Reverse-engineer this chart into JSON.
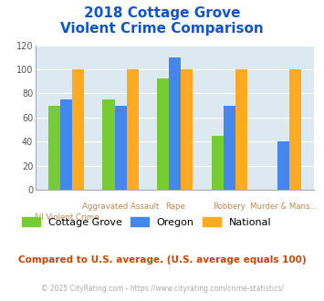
{
  "title_line1": "2018 Cottage Grove",
  "title_line2": "Violent Crime Comparison",
  "categories": [
    "All Violent Crime",
    "Aggravated Assault",
    "Rape",
    "Robbery",
    "Murder & Mans..."
  ],
  "series": {
    "Cottage Grove": [
      70,
      75,
      92,
      45,
      0
    ],
    "Oregon": [
      75,
      70,
      110,
      70,
      40
    ],
    "National": [
      100,
      100,
      100,
      100,
      100
    ]
  },
  "colors": {
    "Cottage Grove": "#77cc33",
    "Oregon": "#4488ee",
    "National": "#ffaa22"
  },
  "ylim": [
    0,
    120
  ],
  "yticks": [
    0,
    20,
    40,
    60,
    80,
    100,
    120
  ],
  "plot_bg": "#dce9f0",
  "title_color": "#1155cc",
  "axis_label_color": "#bb8855",
  "footer_text": "Compared to U.S. average. (U.S. average equals 100)",
  "footer_color": "#cc4400",
  "copyright_text": "© 2025 CityRating.com - https://www.cityrating.com/crime-statistics/",
  "copyright_color": "#aaaaaa",
  "bar_width": 0.22,
  "upper_labels": [
    "",
    "Aggravated Assault",
    "Rape",
    "Robbery",
    "Murder & Mans..."
  ],
  "lower_labels": [
    "All Violent Crime",
    "",
    "",
    "",
    ""
  ]
}
